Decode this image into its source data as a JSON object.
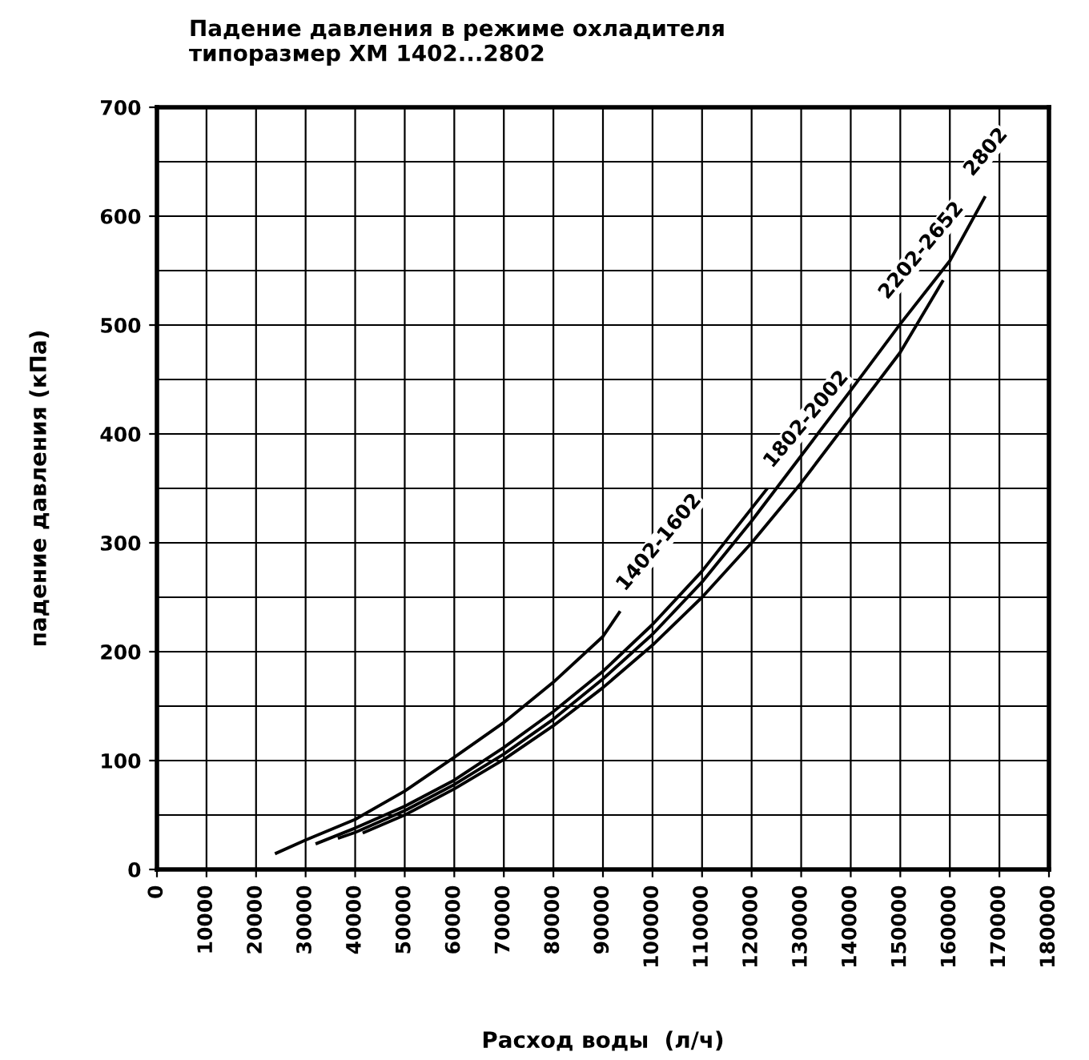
{
  "chart_data": {
    "type": "line",
    "title": "Падение давления в режиме охладителя\nтипоразмер XM 1402...2802",
    "xlabel": "Расход воды  (л/ч)",
    "ylabel": "падение давления (кПа)",
    "series": [
      {
        "name": "1402-1602",
        "color": "#000000",
        "x": [
          24100,
          30000,
          40000,
          50000,
          60000,
          70000,
          80000,
          90000,
          93300
        ],
        "values": [
          15,
          27,
          46,
          72,
          103,
          135,
          172,
          214,
          236
        ]
      },
      {
        "name": "1802-2002",
        "color": "#000000",
        "x": [
          32300,
          40000,
          50000,
          60000,
          70000,
          80000,
          90000,
          100000,
          110000,
          123000
        ],
        "values": [
          24,
          38,
          58,
          82,
          112,
          145,
          182,
          225,
          274,
          349
        ]
      },
      {
        "name": "2802",
        "color": "#000000",
        "x": [
          36800,
          40000,
          50000,
          60000,
          70000,
          80000,
          90000,
          100000,
          110000,
          120000,
          130000,
          140000,
          150000,
          160000,
          167000
        ],
        "values": [
          29,
          34,
          54,
          78,
          106,
          138,
          175,
          216,
          264,
          320,
          380,
          440,
          501,
          559,
          617
        ]
      },
      {
        "name": "2202-2652",
        "color": "#000000",
        "x": [
          41800,
          50000,
          60000,
          70000,
          80000,
          90000,
          100000,
          110000,
          120000,
          130000,
          140000,
          150000,
          158500
        ],
        "values": [
          34,
          50,
          74,
          101,
          132,
          167,
          206,
          250,
          300,
          355,
          415,
          475,
          540
        ]
      }
    ],
    "xlim": [
      0,
      180000
    ],
    "xticks": [
      0,
      10000,
      20000,
      30000,
      40000,
      50000,
      60000,
      70000,
      80000,
      90000,
      100000,
      110000,
      120000,
      130000,
      140000,
      150000,
      160000,
      170000,
      180000
    ],
    "ylim": [
      0,
      700
    ],
    "yticks": [
      0,
      100,
      200,
      300,
      400,
      500,
      600,
      700
    ],
    "grid": true,
    "legend": false,
    "marker": "none",
    "line_style": "solid"
  }
}
